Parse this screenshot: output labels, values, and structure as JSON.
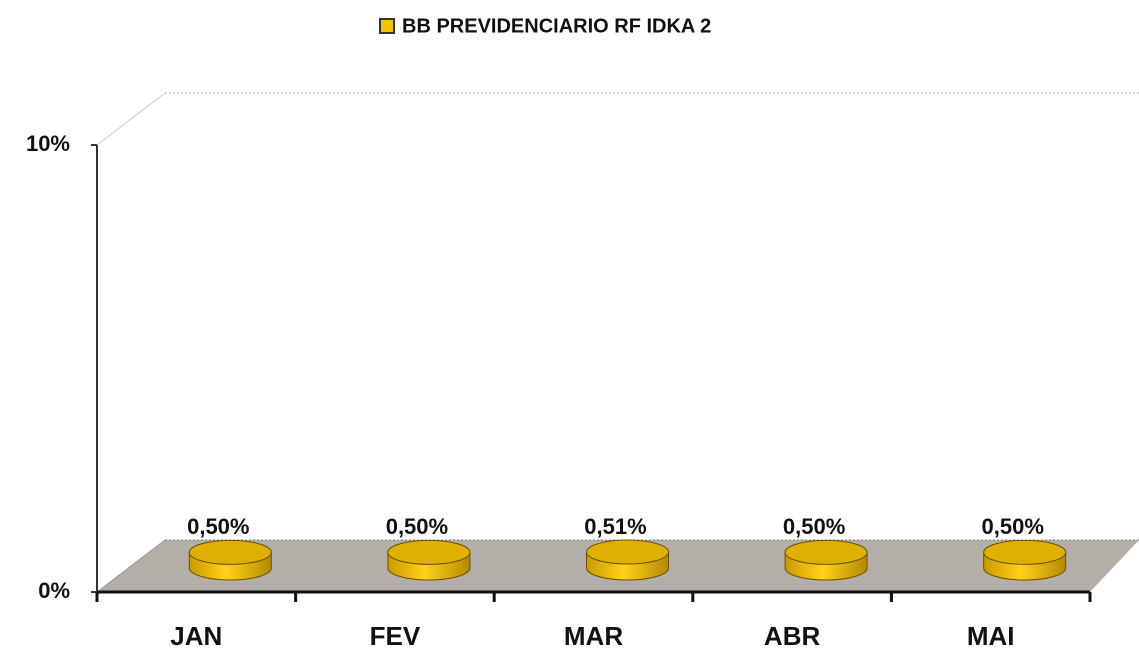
{
  "chart_data": {
    "type": "bar3d",
    "categories": [
      "JAN",
      "FEV",
      "MAR",
      "ABR",
      "MAI"
    ],
    "series": [
      {
        "name": "BB PREVIDENCIARIO RF IDKA 2",
        "color": "#f5c400",
        "values": [
          0.5,
          0.5,
          0.51,
          0.5,
          0.5
        ],
        "value_labels": [
          "0,50%",
          "0,50%",
          "0,51%",
          "0,50%",
          "0,50%"
        ]
      }
    ],
    "ylim": [
      0,
      10
    ],
    "yticks": [
      {
        "value": 0,
        "label": "0%"
      },
      {
        "value": 10,
        "label": "10%"
      }
    ],
    "legend": "top"
  }
}
